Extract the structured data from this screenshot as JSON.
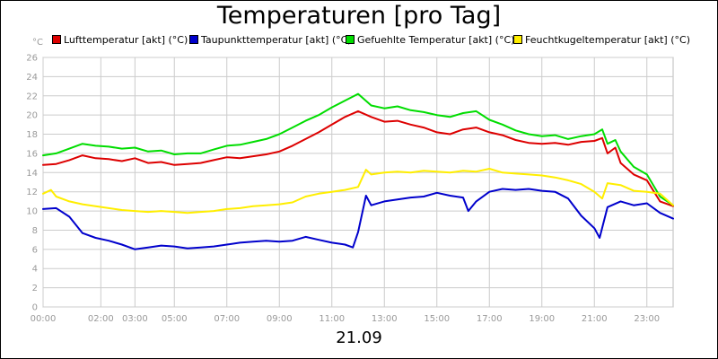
{
  "chart_data": {
    "type": "line",
    "title": "Temperaturen [pro Tag]",
    "date_label": "21.09",
    "y_unit": "°C",
    "ylim": [
      0,
      26
    ],
    "yticks": [
      0,
      2,
      4,
      6,
      8,
      10,
      12,
      14,
      16,
      18,
      20,
      22,
      24,
      26
    ],
    "xlim": [
      0,
      24
    ],
    "xticks": [
      {
        "value": 0,
        "label": "00:00"
      },
      {
        "value": 2.2,
        "label": "02:00"
      },
      {
        "value": 3.5,
        "label": "03:00"
      },
      {
        "value": 5,
        "label": "05:00"
      },
      {
        "value": 7,
        "label": "07:00"
      },
      {
        "value": 9,
        "label": "09:00"
      },
      {
        "value": 11,
        "label": "11:00"
      },
      {
        "value": 13,
        "label": "13:00"
      },
      {
        "value": 15,
        "label": "15:00"
      },
      {
        "value": 17,
        "label": "17:00"
      },
      {
        "value": 19,
        "label": "19:00"
      },
      {
        "value": 21,
        "label": "21:00"
      },
      {
        "value": 23,
        "label": "23:00"
      }
    ],
    "grid": true,
    "legend_position": "top",
    "series": [
      {
        "name": "Lufttemperatur [akt] (°C)",
        "color": "#dd0000",
        "x": [
          0,
          0.5,
          1,
          1.5,
          2,
          2.5,
          3,
          3.5,
          4,
          4.5,
          5,
          5.5,
          6,
          6.5,
          7,
          7.5,
          8,
          8.5,
          9,
          9.5,
          10,
          10.5,
          11,
          11.5,
          12,
          12.5,
          13,
          13.5,
          14,
          14.5,
          15,
          15.5,
          16,
          16.5,
          17,
          17.5,
          18,
          18.5,
          19,
          19.5,
          20,
          20.5,
          21,
          21.3,
          21.5,
          21.8,
          22,
          22.5,
          23,
          23.5,
          24
        ],
        "y": [
          14.8,
          14.9,
          15.3,
          15.8,
          15.5,
          15.4,
          15.2,
          15.5,
          15.0,
          15.1,
          14.8,
          14.9,
          15.0,
          15.3,
          15.6,
          15.5,
          15.7,
          15.9,
          16.2,
          16.8,
          17.5,
          18.2,
          19.0,
          19.8,
          20.4,
          19.8,
          19.3,
          19.4,
          19.0,
          18.7,
          18.2,
          18.0,
          18.5,
          18.7,
          18.2,
          17.9,
          17.4,
          17.1,
          17.0,
          17.1,
          16.9,
          17.2,
          17.3,
          17.6,
          16.0,
          16.6,
          15.0,
          13.8,
          13.2,
          11.0,
          10.5
        ]
      },
      {
        "name": "Taupunkttemperatur [akt] (°C)",
        "color": "#0000cc",
        "x": [
          0,
          0.5,
          1,
          1.5,
          2,
          2.5,
          3,
          3.5,
          4,
          4.5,
          5,
          5.5,
          6,
          6.5,
          7,
          7.5,
          8,
          8.5,
          9,
          9.5,
          10,
          10.5,
          11,
          11.5,
          11.8,
          12,
          12.3,
          12.5,
          13,
          13.5,
          14,
          14.5,
          15,
          15.5,
          16,
          16.2,
          16.5,
          17,
          17.5,
          18,
          18.5,
          19,
          19.5,
          20,
          20.5,
          21,
          21.2,
          21.5,
          22,
          22.5,
          23,
          23.5,
          24
        ],
        "y": [
          10.2,
          10.3,
          9.4,
          7.7,
          7.2,
          6.9,
          6.5,
          6.0,
          6.2,
          6.4,
          6.3,
          6.1,
          6.2,
          6.3,
          6.5,
          6.7,
          6.8,
          6.9,
          6.8,
          6.9,
          7.3,
          7.0,
          6.7,
          6.5,
          6.2,
          7.8,
          11.6,
          10.6,
          11.0,
          11.2,
          11.4,
          11.5,
          11.9,
          11.6,
          11.4,
          10.0,
          11.0,
          12.0,
          12.3,
          12.2,
          12.3,
          12.1,
          12.0,
          11.3,
          9.5,
          8.2,
          7.2,
          10.4,
          11.0,
          10.6,
          10.8,
          9.8,
          9.2
        ]
      },
      {
        "name": "Gefuehlte Temperatur [akt] (°C)",
        "color": "#00dd00",
        "x": [
          0,
          0.5,
          1,
          1.5,
          2,
          2.5,
          3,
          3.5,
          4,
          4.5,
          5,
          5.5,
          6,
          6.5,
          7,
          7.5,
          8,
          8.5,
          9,
          9.5,
          10,
          10.5,
          11,
          11.5,
          12,
          12.5,
          13,
          13.5,
          14,
          14.5,
          15,
          15.5,
          16,
          16.5,
          17,
          17.5,
          18,
          18.5,
          19,
          19.5,
          20,
          20.5,
          21,
          21.3,
          21.5,
          21.8,
          22,
          22.5,
          23,
          23.5,
          24
        ],
        "y": [
          15.8,
          16.0,
          16.5,
          17.0,
          16.8,
          16.7,
          16.5,
          16.6,
          16.2,
          16.3,
          15.9,
          16.0,
          16.0,
          16.4,
          16.8,
          16.9,
          17.2,
          17.5,
          18.0,
          18.7,
          19.4,
          20.0,
          20.8,
          21.5,
          22.2,
          21.0,
          20.7,
          20.9,
          20.5,
          20.3,
          20.0,
          19.8,
          20.2,
          20.4,
          19.5,
          19.0,
          18.4,
          18.0,
          17.8,
          17.9,
          17.5,
          17.8,
          18.0,
          18.5,
          17.0,
          17.4,
          16.2,
          14.6,
          13.8,
          11.5,
          10.6
        ]
      },
      {
        "name": "Feuchtkugeltemperatur [akt] (°C)",
        "color": "#ffee00",
        "x": [
          0,
          0.3,
          0.5,
          1,
          1.5,
          2,
          2.5,
          3,
          3.5,
          4,
          4.5,
          5,
          5.5,
          6,
          6.5,
          7,
          7.5,
          8,
          8.5,
          9,
          9.5,
          10,
          10.5,
          11,
          11.5,
          12,
          12.3,
          12.5,
          13,
          13.5,
          14,
          14.5,
          15,
          15.5,
          16,
          16.5,
          17,
          17.5,
          18,
          18.5,
          19,
          19.5,
          20,
          20.5,
          21,
          21.3,
          21.5,
          22,
          22.5,
          23,
          23.5,
          24
        ],
        "y": [
          11.8,
          12.2,
          11.5,
          11.0,
          10.7,
          10.5,
          10.3,
          10.1,
          10.0,
          9.9,
          10.0,
          9.9,
          9.8,
          9.9,
          10.0,
          10.2,
          10.3,
          10.5,
          10.6,
          10.7,
          10.9,
          11.5,
          11.8,
          12.0,
          12.2,
          12.5,
          14.3,
          13.8,
          14.0,
          14.1,
          14.0,
          14.2,
          14.1,
          14.0,
          14.2,
          14.1,
          14.4,
          14.0,
          13.9,
          13.8,
          13.7,
          13.5,
          13.2,
          12.8,
          12.0,
          11.3,
          12.9,
          12.7,
          12.1,
          12.0,
          11.8,
          10.6
        ]
      }
    ]
  }
}
